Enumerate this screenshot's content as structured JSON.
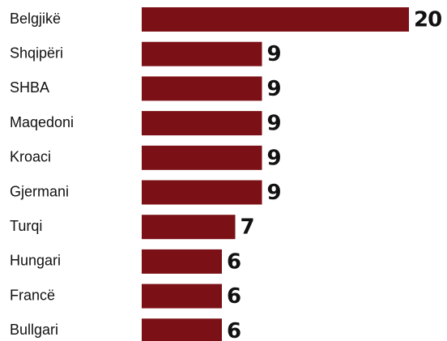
{
  "chart_data": {
    "type": "bar",
    "orientation": "horizontal",
    "categories": [
      "Belgjikë",
      "Shqipëri",
      "SHBA",
      "Maqedoni",
      "Kroaci",
      "Gjermani",
      "Turqi",
      "Hungari",
      "Francë",
      "Bullgari"
    ],
    "values": [
      20,
      9,
      9,
      9,
      9,
      9,
      7,
      6,
      6,
      6
    ],
    "color": "#7b1016"
  }
}
